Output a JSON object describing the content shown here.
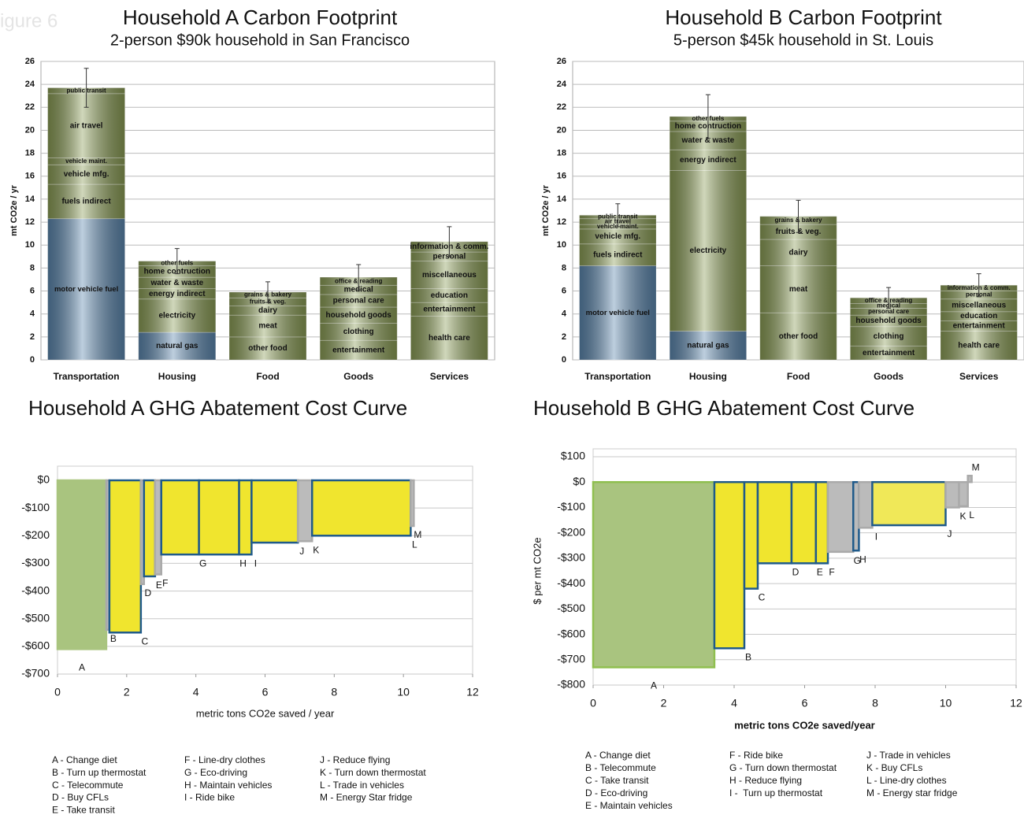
{
  "figure_label": "igure 6",
  "chart_data": [
    {
      "type": "stacked_bar",
      "title": "Household A Carbon Footprint",
      "subtitle": "2-person $90k household in San Francisco",
      "ylabel": "mt CO2e / yr",
      "categories": [
        "Transportation",
        "Housing",
        "Food",
        "Goods",
        "Services"
      ],
      "segments": [
        [
          {
            "label": "motor vehicle fuel",
            "value": 12.3,
            "color": "#5b86ad"
          },
          {
            "label": "fuels indirect",
            "value": 3.0,
            "color": "#8a9c55"
          },
          {
            "label": "vehicle mfg.",
            "value": 1.7,
            "color": "#8a9c55"
          },
          {
            "label": "vehicle maint.",
            "value": 0.6,
            "color": "#8a9c55"
          },
          {
            "label": "air travel",
            "value": 5.6,
            "color": "#8a9c55"
          },
          {
            "label": "public transit",
            "value": 0.5,
            "color": "#8a9c55"
          }
        ],
        [
          {
            "label": "natural gas",
            "value": 2.4,
            "color": "#5b86ad"
          },
          {
            "label": "electricity",
            "value": 2.9,
            "color": "#8a9c55"
          },
          {
            "label": "energy indirect",
            "value": 0.9,
            "color": "#8a9c55"
          },
          {
            "label": "water & waste",
            "value": 1.0,
            "color": "#8a9c55"
          },
          {
            "label": "home contruction",
            "value": 1.0,
            "color": "#8a9c55"
          },
          {
            "label": "other fuels",
            "value": 0.4,
            "color": "#8a9c55"
          }
        ],
        [
          {
            "label": "other food",
            "value": 2.0,
            "color": "#8a9c55"
          },
          {
            "label": "meat",
            "value": 1.9,
            "color": "#8a9c55"
          },
          {
            "label": "dairy",
            "value": 0.8,
            "color": "#8a9c55"
          },
          {
            "label": "fruits & veg.",
            "value": 0.7,
            "color": "#8a9c55"
          },
          {
            "label": "grains & bakery",
            "value": 0.5,
            "color": "#8a9c55"
          }
        ],
        [
          {
            "label": "entertainment",
            "value": 1.7,
            "color": "#8a9c55"
          },
          {
            "label": "clothing",
            "value": 1.5,
            "color": "#8a9c55"
          },
          {
            "label": "household goods",
            "value": 1.4,
            "color": "#8a9c55"
          },
          {
            "label": "personal care",
            "value": 1.1,
            "color": "#8a9c55"
          },
          {
            "label": "medical",
            "value": 0.8,
            "color": "#8a9c55"
          },
          {
            "label": "office & reading",
            "value": 0.7,
            "color": "#8a9c55"
          }
        ],
        [
          {
            "label": "health care",
            "value": 3.8,
            "color": "#8a9c55"
          },
          {
            "label": "entertainment",
            "value": 1.2,
            "color": "#8a9c55"
          },
          {
            "label": "education",
            "value": 1.2,
            "color": "#8a9c55"
          },
          {
            "label": "miscellaneous",
            "value": 2.4,
            "color": "#8a9c55"
          },
          {
            "label": "personal",
            "value": 0.8,
            "color": "#8a9c55"
          },
          {
            "label": "information & comm.",
            "value": 0.9,
            "color": "#8a9c55"
          }
        ]
      ],
      "errors": [
        1.7,
        1.1,
        0.9,
        1.1,
        1.3
      ],
      "ylim": [
        0,
        26
      ],
      "yticks": [
        0,
        2,
        4,
        6,
        8,
        10,
        12,
        14,
        16,
        18,
        20,
        22,
        24,
        26
      ],
      "grid": true
    },
    {
      "type": "stacked_bar",
      "title": "Household B Carbon Footprint",
      "subtitle": "5-person $45k household in St. Louis",
      "ylabel": "mt CO2e / yr",
      "categories": [
        "Transportation",
        "Housing",
        "Food",
        "Goods",
        "Services"
      ],
      "segments": [
        [
          {
            "label": "motor vehicle fuel",
            "value": 8.2,
            "color": "#5b86ad"
          },
          {
            "label": "fuels indirect",
            "value": 1.9,
            "color": "#8a9c55"
          },
          {
            "label": "vehicle mfg.",
            "value": 1.3,
            "color": "#8a9c55"
          },
          {
            "label": "vehicle maint.",
            "value": 0.4,
            "color": "#8a9c55"
          },
          {
            "label": "air travel",
            "value": 0.5,
            "color": "#8a9c55"
          },
          {
            "label": "public transit",
            "value": 0.3,
            "color": "#8a9c55"
          }
        ],
        [
          {
            "label": "natural gas",
            "value": 2.5,
            "color": "#5b86ad"
          },
          {
            "label": "electricity",
            "value": 14.0,
            "color": "#8a9c55"
          },
          {
            "label": "energy indirect",
            "value": 1.8,
            "color": "#8a9c55"
          },
          {
            "label": "water & waste",
            "value": 1.6,
            "color": "#8a9c55"
          },
          {
            "label": "home contruction",
            "value": 0.9,
            "color": "#8a9c55"
          },
          {
            "label": "other fuels",
            "value": 0.4,
            "color": "#8a9c55"
          }
        ],
        [
          {
            "label": "other food",
            "value": 4.1,
            "color": "#8a9c55"
          },
          {
            "label": "meat",
            "value": 4.1,
            "color": "#8a9c55"
          },
          {
            "label": "dairy",
            "value": 2.3,
            "color": "#8a9c55"
          },
          {
            "label": "fruits & veg.",
            "value": 1.3,
            "color": "#8a9c55"
          },
          {
            "label": "grains & bakery",
            "value": 0.7,
            "color": "#8a9c55"
          }
        ],
        [
          {
            "label": "entertainment",
            "value": 1.2,
            "color": "#8a9c55"
          },
          {
            "label": "clothing",
            "value": 1.7,
            "color": "#8a9c55"
          },
          {
            "label": "household goods",
            "value": 1.0,
            "color": "#8a9c55"
          },
          {
            "label": "personal care",
            "value": 0.6,
            "color": "#8a9c55"
          },
          {
            "label": "medical",
            "value": 0.4,
            "color": "#8a9c55"
          },
          {
            "label": "office & reading",
            "value": 0.5,
            "color": "#8a9c55"
          }
        ],
        [
          {
            "label": "health care",
            "value": 2.5,
            "color": "#8a9c55"
          },
          {
            "label": "entertainment",
            "value": 0.9,
            "color": "#8a9c55"
          },
          {
            "label": "education",
            "value": 0.8,
            "color": "#8a9c55"
          },
          {
            "label": "miscellaneous",
            "value": 1.1,
            "color": "#8a9c55"
          },
          {
            "label": "personal",
            "value": 0.7,
            "color": "#8a9c55"
          },
          {
            "label": "information & comm.",
            "value": 0.5,
            "color": "#8a9c55"
          }
        ]
      ],
      "errors": [
        1.0,
        1.9,
        1.4,
        0.9,
        1.0
      ],
      "ylim": [
        0,
        26
      ],
      "yticks": [
        0,
        2,
        4,
        6,
        8,
        10,
        12,
        14,
        16,
        18,
        20,
        22,
        24,
        26
      ],
      "grid": true
    },
    {
      "type": "step_cost",
      "title": "Household A GHG Abatement Cost Curve",
      "xlabel": "metric tons CO2e saved / year",
      "labels": [
        "A",
        "B",
        "C",
        "D",
        "E",
        "F",
        "G",
        "H",
        "I",
        "J",
        "K",
        "L",
        "M"
      ],
      "widths": [
        1.41,
        0.09,
        0.91,
        0.09,
        0.32,
        0.18,
        1.09,
        1.16,
        0.36,
        1.34,
        0.41,
        2.85,
        0.09
      ],
      "values": [
        -610,
        -540,
        -550,
        -375,
        -347,
        -340,
        -268,
        -268,
        -268,
        -225,
        -220,
        -200,
        -165
      ],
      "colors": [
        "#a9c47f",
        "#bbbbbb",
        "#f0e52e",
        "#bbbbbb",
        "#f0e52e",
        "#bbbbbb",
        "#f0e52e",
        "#f0e52e",
        "#f0e52e",
        "#f0e52e",
        "#bbbbbb",
        "#f0e52e",
        "#bbbbbb"
      ],
      "edgecolors": [
        "#a9c47f",
        "#aaaaaa",
        "#1f5a8a",
        "#aaaaaa",
        "#1f5a8a",
        "#aaaaaa",
        "#1f5a8a",
        "#1f5a8a",
        "#1f5a8a",
        "#1f5a8a",
        "#aaaaaa",
        "#1f5a8a",
        "#aaaaaa"
      ],
      "xlim": [
        0,
        12
      ],
      "xticks": [
        0,
        2,
        4,
        6,
        8,
        10,
        12
      ],
      "ylim": [
        -700,
        0
      ],
      "yticks": [
        {
          "value": 0,
          "label": "$0"
        },
        {
          "value": -100,
          "label": "-$100"
        },
        {
          "value": -200,
          "label": "-$200"
        },
        {
          "value": -300,
          "label": "-$300"
        },
        {
          "value": -400,
          "label": "-$400"
        },
        {
          "value": -500,
          "label": "-$500"
        },
        {
          "value": -600,
          "label": "-$600"
        },
        {
          "value": -700,
          "label": "-$700"
        }
      ],
      "legend": [
        "A - Change diet",
        "B - Turn up thermostat",
        "C - Telecommute",
        "D - Buy CFLs",
        "E - Take transit",
        "F - Line-dry clothes",
        "G - Eco-driving",
        "H - Maintain vehicles",
        "I - Ride bike",
        "J - Reduce flying",
        "K - Turn down thermostat",
        "L - Trade in vehicles",
        "M - Energy Star fridge"
      ]
    },
    {
      "type": "step_cost",
      "title": "Household B GHG Abatement Cost Curve",
      "xlabel": "metric tons CO2e saved/year",
      "ylabel": "$ per mt CO2e",
      "labels": [
        "A",
        "B",
        "C",
        "D",
        "E",
        "F",
        "G",
        "H",
        "I",
        "J",
        "K",
        "L",
        "M"
      ],
      "widths": [
        3.44,
        0.85,
        0.38,
        0.96,
        0.69,
        0.34,
        0.72,
        0.16,
        0.38,
        2.08,
        0.38,
        0.25,
        0.11
      ],
      "values": [
        -730,
        -655,
        -420,
        -320,
        -320,
        -320,
        -275,
        -270,
        -180,
        -170,
        -100,
        -95,
        25
      ],
      "colors": [
        "#a9c47f",
        "#f0e52e",
        "#f0e52e",
        "#f0e52e",
        "#f0e52e",
        "#f0e52e",
        "#bbbbbb",
        "#bbbbbb",
        "#bbbbbb",
        "#f0e858",
        "#bbbbbb",
        "#bbbbbb",
        "#bbbbbb"
      ],
      "edgecolors": [
        "#8fbf4f",
        "#1f5a8a",
        "#1f5a8a",
        "#1f5a8a",
        "#1f5a8a",
        "#1f5a8a",
        "#aaaaaa",
        "#1f5a8a",
        "#aaaaaa",
        "#1f5a8a",
        "#aaaaaa",
        "#aaaaaa",
        "#aaaaaa"
      ],
      "xlim": [
        0,
        12
      ],
      "xticks": [
        0,
        2,
        4,
        6,
        8,
        10,
        12
      ],
      "ylim": [
        -800,
        100
      ],
      "yticks": [
        {
          "value": 100,
          "label": "$100"
        },
        {
          "value": 0,
          "label": "$0"
        },
        {
          "value": -100,
          "label": "-$100"
        },
        {
          "value": -200,
          "label": "-$200"
        },
        {
          "value": -300,
          "label": "-$300"
        },
        {
          "value": -400,
          "label": "-$400"
        },
        {
          "value": -500,
          "label": "-$500"
        },
        {
          "value": -600,
          "label": "-$600"
        },
        {
          "value": -700,
          "label": "-$700"
        },
        {
          "value": -800,
          "label": "-$800"
        }
      ],
      "legend": [
        "A - Change diet",
        "B - Telecommute",
        "C - Take transit",
        "D - Eco-driving",
        "E - Maintain vehicles",
        "F - Ride bike",
        "G - Turn down thermostat",
        "H - Reduce flying",
        "I -  Turn up thermostat",
        "J - Trade in vehicles",
        "K - Buy CFLs",
        "L - Line-dry clothes",
        "M - Energy star fridge"
      ]
    }
  ]
}
